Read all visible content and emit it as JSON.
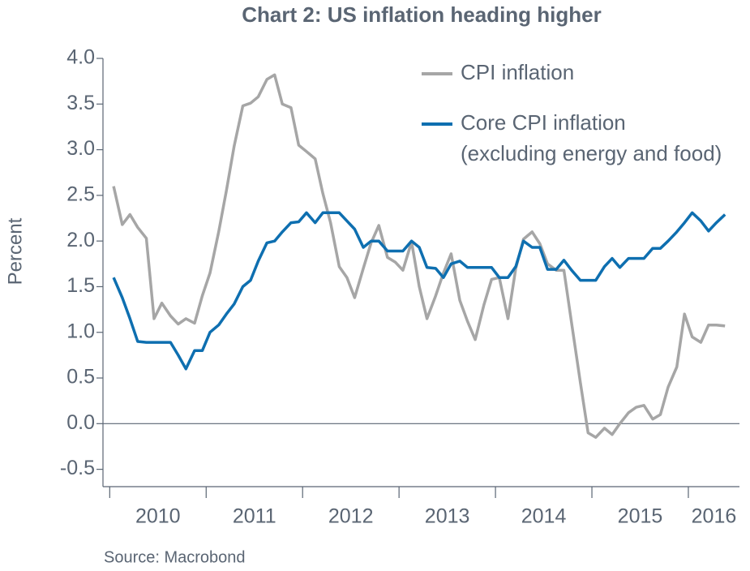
{
  "chart_data": {
    "type": "line",
    "title": "Chart 2: US inflation heading higher",
    "y_label": "Percent",
    "source": "Source: Macrobond",
    "x": [
      2010.04,
      2010.13,
      2010.21,
      2010.29,
      2010.38,
      2010.46,
      2010.54,
      2010.63,
      2010.71,
      2010.79,
      2010.88,
      2010.96,
      2011.04,
      2011.13,
      2011.21,
      2011.29,
      2011.38,
      2011.46,
      2011.54,
      2011.63,
      2011.71,
      2011.79,
      2011.88,
      2011.96,
      2012.04,
      2012.13,
      2012.21,
      2012.29,
      2012.38,
      2012.46,
      2012.54,
      2012.63,
      2012.71,
      2012.79,
      2012.88,
      2012.96,
      2013.04,
      2013.13,
      2013.21,
      2013.29,
      2013.38,
      2013.46,
      2013.54,
      2013.63,
      2013.71,
      2013.79,
      2013.88,
      2013.96,
      2014.04,
      2014.13,
      2014.21,
      2014.29,
      2014.38,
      2014.46,
      2014.54,
      2014.63,
      2014.71,
      2014.79,
      2014.88,
      2014.96,
      2015.04,
      2015.13,
      2015.21,
      2015.29,
      2015.38,
      2015.46,
      2015.54,
      2015.63,
      2015.71,
      2015.79,
      2015.88,
      2015.96,
      2016.04,
      2016.13,
      2016.21,
      2016.29,
      2016.38
    ],
    "series": [
      {
        "name": "CPI inflation",
        "color": "#a6a6a6",
        "values": [
          2.6,
          2.18,
          2.29,
          2.15,
          2.03,
          1.15,
          1.32,
          1.18,
          1.09,
          1.15,
          1.1,
          1.4,
          1.65,
          2.1,
          2.55,
          3.04,
          3.48,
          3.51,
          3.58,
          3.77,
          3.82,
          3.5,
          3.46,
          3.05,
          2.98,
          2.9,
          2.52,
          2.2,
          1.72,
          1.6,
          1.38,
          1.7,
          1.98,
          2.17,
          1.82,
          1.77,
          1.68,
          1.99,
          1.5,
          1.15,
          1.4,
          1.65,
          1.86,
          1.35,
          1.12,
          0.92,
          1.3,
          1.58,
          1.6,
          1.15,
          1.7,
          2.02,
          2.1,
          1.97,
          1.75,
          1.68,
          1.68,
          1.1,
          0.45,
          -0.1,
          -0.15,
          -0.05,
          -0.12,
          0.0,
          0.12,
          0.18,
          0.2,
          0.05,
          0.1,
          0.4,
          0.62,
          1.2,
          0.95,
          0.89,
          1.08,
          1.08,
          1.07
        ]
      },
      {
        "name": "Core CPI inflation\n(excluding energy and food)",
        "color": "#0e6fb0",
        "values": [
          1.6,
          1.38,
          1.15,
          0.9,
          0.89,
          0.89,
          0.89,
          0.89,
          0.75,
          0.6,
          0.8,
          0.8,
          1.0,
          1.08,
          1.2,
          1.31,
          1.5,
          1.57,
          1.78,
          1.98,
          2.0,
          2.1,
          2.2,
          2.21,
          2.31,
          2.2,
          2.31,
          2.31,
          2.31,
          2.22,
          2.13,
          1.93,
          2.0,
          2.0,
          1.89,
          1.89,
          1.89,
          2.0,
          1.93,
          1.71,
          1.7,
          1.6,
          1.75,
          1.78,
          1.71,
          1.71,
          1.71,
          1.71,
          1.6,
          1.6,
          1.72,
          2.0,
          1.93,
          1.93,
          1.69,
          1.69,
          1.79,
          1.68,
          1.57,
          1.57,
          1.57,
          1.72,
          1.81,
          1.71,
          1.81,
          1.81,
          1.81,
          1.92,
          1.92,
          2.0,
          2.1,
          2.2,
          2.31,
          2.22,
          2.11,
          2.2,
          2.29
        ]
      }
    ],
    "xlim": [
      2009.93,
      2016.53
    ],
    "xticks": [
      2010,
      2011,
      2012,
      2013,
      2014,
      2015,
      2016
    ],
    "ylim": [
      -0.69,
      4.0
    ],
    "yticks": [
      {
        "value": -0.5,
        "label": "-0.5"
      },
      {
        "value": 0,
        "label": "0.0"
      },
      0.5,
      {
        "value": 1,
        "label": "1.0"
      },
      1.5,
      {
        "value": 2,
        "label": "2.0"
      },
      2.5,
      {
        "value": 3,
        "label": "3.0"
      },
      3.5,
      {
        "value": 4,
        "label": "4.0"
      }
    ],
    "zero_line": true,
    "legend_position": "upper right"
  }
}
